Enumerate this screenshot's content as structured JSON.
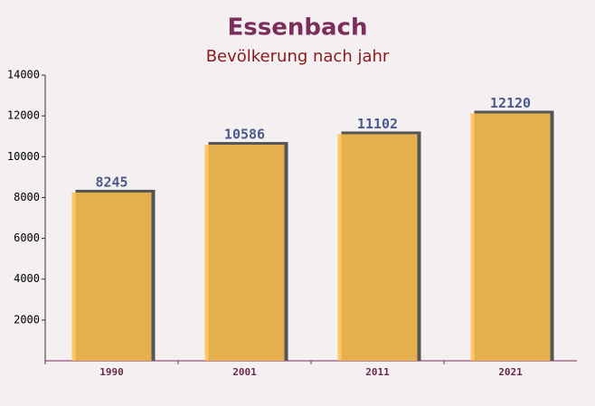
{
  "chart_data": {
    "type": "bar",
    "title": "Essenbach",
    "subtitle": "Bevölkerung nach jahr",
    "categories": [
      "1990",
      "2001",
      "2011",
      "2021"
    ],
    "values": [
      8245,
      10586,
      11102,
      12120
    ],
    "color": "#ffc04d",
    "ylim": [
      0,
      14000
    ],
    "yticks": [
      2000,
      4000,
      6000,
      8000,
      10000,
      12000,
      14000
    ],
    "grid": false
  }
}
